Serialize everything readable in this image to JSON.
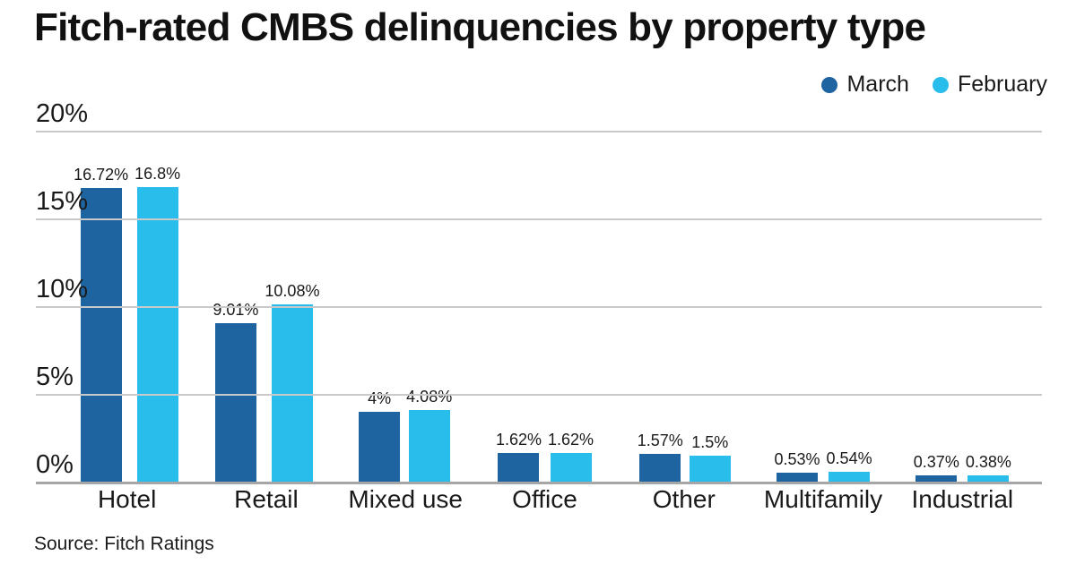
{
  "title": "Fitch-rated CMBS delinquencies by property type",
  "source": "Source: Fitch Ratings",
  "colors": {
    "march": "#1e64a0",
    "february": "#29bdec",
    "gridline": "#c9c9c9",
    "axis": "#a6a6a6",
    "text": "#1a1a1a"
  },
  "chart_data": {
    "type": "bar",
    "title": "Fitch-rated CMBS delinquencies by property type",
    "categories": [
      "Hotel",
      "Retail",
      "Mixed use",
      "Office",
      "Other",
      "Multifamily",
      "Industrial"
    ],
    "series": [
      {
        "name": "March",
        "color": "#1e64a0",
        "values": [
          16.72,
          9.01,
          4,
          1.62,
          1.57,
          0.53,
          0.37
        ],
        "labels": [
          "16.72%",
          "9.01%",
          "4%",
          "1.62%",
          "1.57%",
          "0.53%",
          "0.37%"
        ]
      },
      {
        "name": "February",
        "color": "#29bdec",
        "values": [
          16.8,
          10.08,
          4.08,
          1.62,
          1.5,
          0.54,
          0.38
        ],
        "labels": [
          "16.8%",
          "10.08%",
          "4.08%",
          "1.62%",
          "1.5%",
          "0.54%",
          "0.38%"
        ]
      }
    ],
    "xlabel": "",
    "ylabel": "",
    "ylim": [
      0,
      20
    ],
    "yticks": [
      "20%",
      "15%",
      "10%",
      "5%",
      "0%"
    ],
    "grid": true,
    "legend_position": "top-right",
    "source": "Source: Fitch Ratings"
  }
}
